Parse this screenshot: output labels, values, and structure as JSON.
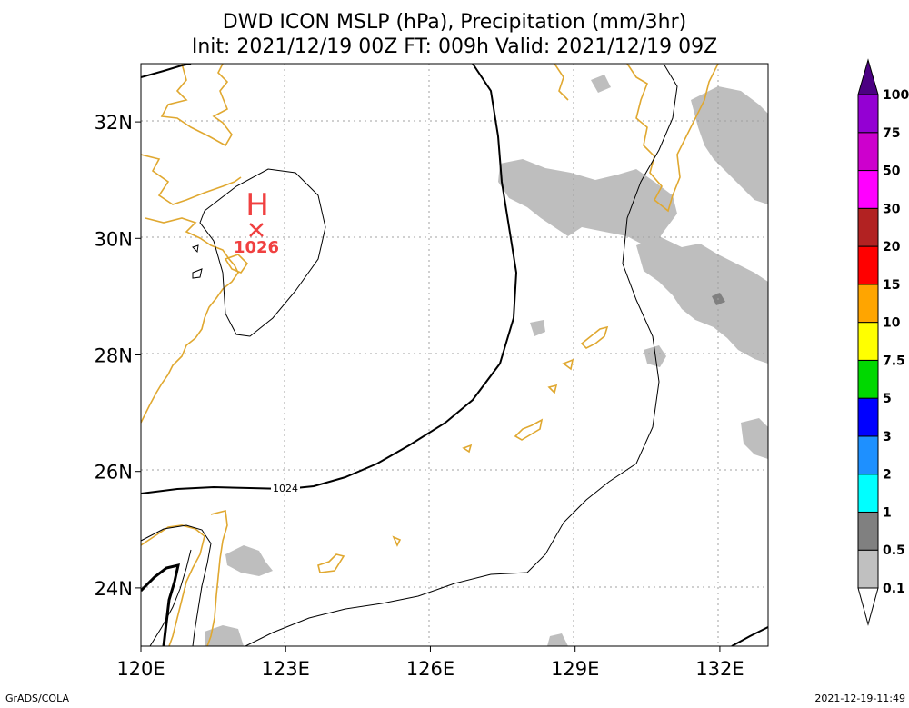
{
  "title_line1": "DWD ICON MSLP (hPa), Precipitation (mm/3hr)",
  "title_line2": "Init: 2021/12/19 00Z  FT: 009h  Valid: 2021/12/19 09Z",
  "footer_left": "GrADS/COLA",
  "footer_right": "2021-12-19-11:49",
  "map": {
    "lon_range": [
      120,
      133
    ],
    "lat_range": [
      23,
      33
    ],
    "lon_ticks": [
      {
        "value": 120,
        "label": "120E"
      },
      {
        "value": 123,
        "label": "123E"
      },
      {
        "value": 126,
        "label": "126E"
      },
      {
        "value": 129,
        "label": "129E"
      },
      {
        "value": 132,
        "label": "132E"
      }
    ],
    "lat_ticks": [
      {
        "value": 24,
        "label": "24N"
      },
      {
        "value": 26,
        "label": "26N"
      },
      {
        "value": 28,
        "label": "28N"
      },
      {
        "value": 30,
        "label": "30N"
      },
      {
        "value": 32,
        "label": "32N"
      }
    ],
    "high_center": {
      "symbol": "H",
      "value": "1026",
      "lon": 122.45,
      "lat": 30.15,
      "color": "#f04040"
    },
    "isobar_label": "1024",
    "colors": {
      "coastline": "#e0a830",
      "precip_light": "#bebebe",
      "precip_medium": "#808080",
      "isobar": "#000000"
    }
  },
  "colorbar": {
    "labels": [
      "0.1",
      "0.5",
      "1",
      "2",
      "3",
      "5",
      "7.5",
      "10",
      "15",
      "20",
      "30",
      "50",
      "75",
      "100"
    ],
    "colors": [
      "#c0c0c0",
      "#808080",
      "#00ffff",
      "#1e90ff",
      "#0000ff",
      "#00d800",
      "#ffff00",
      "#ffa500",
      "#ff0000",
      "#b22222",
      "#ff00ff",
      "#cd00cd",
      "#9400d3",
      "#4b0082"
    ]
  }
}
